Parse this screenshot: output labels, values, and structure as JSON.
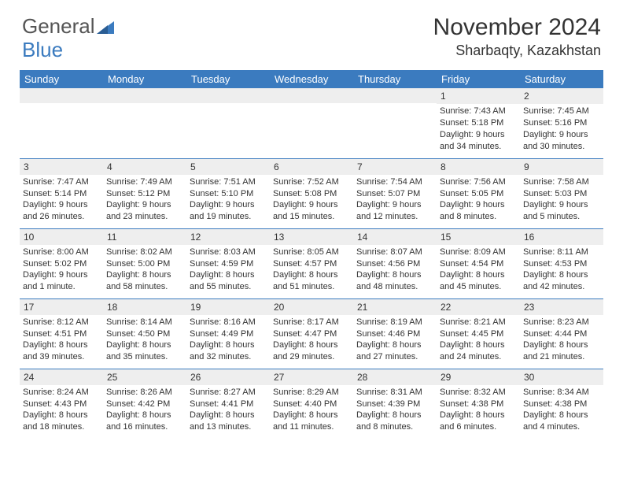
{
  "logo": {
    "text_a": "General",
    "text_b": "Blue"
  },
  "title": "November 2024",
  "location": "Sharbaqty, Kazakhstan",
  "dow": [
    "Sunday",
    "Monday",
    "Tuesday",
    "Wednesday",
    "Thursday",
    "Friday",
    "Saturday"
  ],
  "style": {
    "header_bg": "#3b7bbf",
    "header_fg": "#ffffff",
    "daynum_bg": "#eeeeee",
    "cell_border": "#3b7bbf",
    "body_bg": "#ffffff",
    "text_color": "#333333",
    "title_fontsize": 30,
    "location_fontsize": 18,
    "dow_fontsize": 13,
    "cell_fontsize": 11
  },
  "first_weekday": 5,
  "days": [
    {
      "n": 1,
      "sunrise": "7:43 AM",
      "sunset": "5:18 PM",
      "daylight": "9 hours and 34 minutes."
    },
    {
      "n": 2,
      "sunrise": "7:45 AM",
      "sunset": "5:16 PM",
      "daylight": "9 hours and 30 minutes."
    },
    {
      "n": 3,
      "sunrise": "7:47 AM",
      "sunset": "5:14 PM",
      "daylight": "9 hours and 26 minutes."
    },
    {
      "n": 4,
      "sunrise": "7:49 AM",
      "sunset": "5:12 PM",
      "daylight": "9 hours and 23 minutes."
    },
    {
      "n": 5,
      "sunrise": "7:51 AM",
      "sunset": "5:10 PM",
      "daylight": "9 hours and 19 minutes."
    },
    {
      "n": 6,
      "sunrise": "7:52 AM",
      "sunset": "5:08 PM",
      "daylight": "9 hours and 15 minutes."
    },
    {
      "n": 7,
      "sunrise": "7:54 AM",
      "sunset": "5:07 PM",
      "daylight": "9 hours and 12 minutes."
    },
    {
      "n": 8,
      "sunrise": "7:56 AM",
      "sunset": "5:05 PM",
      "daylight": "9 hours and 8 minutes."
    },
    {
      "n": 9,
      "sunrise": "7:58 AM",
      "sunset": "5:03 PM",
      "daylight": "9 hours and 5 minutes."
    },
    {
      "n": 10,
      "sunrise": "8:00 AM",
      "sunset": "5:02 PM",
      "daylight": "9 hours and 1 minute."
    },
    {
      "n": 11,
      "sunrise": "8:02 AM",
      "sunset": "5:00 PM",
      "daylight": "8 hours and 58 minutes."
    },
    {
      "n": 12,
      "sunrise": "8:03 AM",
      "sunset": "4:59 PM",
      "daylight": "8 hours and 55 minutes."
    },
    {
      "n": 13,
      "sunrise": "8:05 AM",
      "sunset": "4:57 PM",
      "daylight": "8 hours and 51 minutes."
    },
    {
      "n": 14,
      "sunrise": "8:07 AM",
      "sunset": "4:56 PM",
      "daylight": "8 hours and 48 minutes."
    },
    {
      "n": 15,
      "sunrise": "8:09 AM",
      "sunset": "4:54 PM",
      "daylight": "8 hours and 45 minutes."
    },
    {
      "n": 16,
      "sunrise": "8:11 AM",
      "sunset": "4:53 PM",
      "daylight": "8 hours and 42 minutes."
    },
    {
      "n": 17,
      "sunrise": "8:12 AM",
      "sunset": "4:51 PM",
      "daylight": "8 hours and 39 minutes."
    },
    {
      "n": 18,
      "sunrise": "8:14 AM",
      "sunset": "4:50 PM",
      "daylight": "8 hours and 35 minutes."
    },
    {
      "n": 19,
      "sunrise": "8:16 AM",
      "sunset": "4:49 PM",
      "daylight": "8 hours and 32 minutes."
    },
    {
      "n": 20,
      "sunrise": "8:17 AM",
      "sunset": "4:47 PM",
      "daylight": "8 hours and 29 minutes."
    },
    {
      "n": 21,
      "sunrise": "8:19 AM",
      "sunset": "4:46 PM",
      "daylight": "8 hours and 27 minutes."
    },
    {
      "n": 22,
      "sunrise": "8:21 AM",
      "sunset": "4:45 PM",
      "daylight": "8 hours and 24 minutes."
    },
    {
      "n": 23,
      "sunrise": "8:23 AM",
      "sunset": "4:44 PM",
      "daylight": "8 hours and 21 minutes."
    },
    {
      "n": 24,
      "sunrise": "8:24 AM",
      "sunset": "4:43 PM",
      "daylight": "8 hours and 18 minutes."
    },
    {
      "n": 25,
      "sunrise": "8:26 AM",
      "sunset": "4:42 PM",
      "daylight": "8 hours and 16 minutes."
    },
    {
      "n": 26,
      "sunrise": "8:27 AM",
      "sunset": "4:41 PM",
      "daylight": "8 hours and 13 minutes."
    },
    {
      "n": 27,
      "sunrise": "8:29 AM",
      "sunset": "4:40 PM",
      "daylight": "8 hours and 11 minutes."
    },
    {
      "n": 28,
      "sunrise": "8:31 AM",
      "sunset": "4:39 PM",
      "daylight": "8 hours and 8 minutes."
    },
    {
      "n": 29,
      "sunrise": "8:32 AM",
      "sunset": "4:38 PM",
      "daylight": "8 hours and 6 minutes."
    },
    {
      "n": 30,
      "sunrise": "8:34 AM",
      "sunset": "4:38 PM",
      "daylight": "8 hours and 4 minutes."
    }
  ],
  "labels": {
    "sunrise": "Sunrise:",
    "sunset": "Sunset:",
    "daylight": "Daylight:"
  }
}
